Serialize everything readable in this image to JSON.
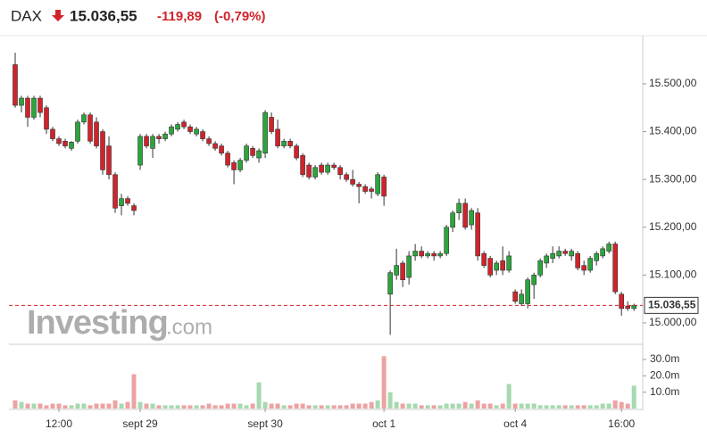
{
  "chart_data": {
    "type": "candlestick",
    "title": "DAX",
    "price": "15.036,55",
    "change": "-119,89",
    "change_pct": "(-0,79%)",
    "watermark": "Investing",
    "watermark_suffix": ".com",
    "up_color": "#2ca53c",
    "down_color": "#d0232b",
    "volume_up_color": "#a6d9b0",
    "volume_down_color": "#eca3a3",
    "last_price": {
      "value": 15036.55,
      "label": "15.036,55"
    },
    "ylim": [
      14957,
      15582
    ],
    "yticks": [
      {
        "value": 15000,
        "label": "15.000,00"
      },
      {
        "value": 15100,
        "label": "15.100,00"
      },
      {
        "value": 15200,
        "label": "15.200,00"
      },
      {
        "value": 15300,
        "label": "15.300,00"
      },
      {
        "value": 15400,
        "label": "15.400,00"
      },
      {
        "value": 15500,
        "label": "15.500,00"
      }
    ],
    "volume_ylim": [
      0,
      36
    ],
    "volume_yticks": [
      {
        "value": 10,
        "label": "10.0m"
      },
      {
        "value": 20,
        "label": "20.0m"
      },
      {
        "value": 30,
        "label": "30.0m"
      }
    ],
    "xlim": [
      -1,
      100.4
    ],
    "xticks": [
      {
        "value": 7,
        "label": "12:00"
      },
      {
        "value": 20,
        "label": "sept 29"
      },
      {
        "value": 40,
        "label": "sept 30"
      },
      {
        "value": 59,
        "label": "oct 1"
      },
      {
        "value": 80,
        "label": "oct 4"
      },
      {
        "value": 97,
        "label": "16:00"
      }
    ],
    "ohlc": [
      [
        15540,
        15565,
        15450,
        15455
      ],
      [
        15455,
        15475,
        15440,
        15470
      ],
      [
        15470,
        15475,
        15410,
        15430
      ],
      [
        15430,
        15475,
        15425,
        15470
      ],
      [
        15470,
        15475,
        15430,
        15440
      ],
      [
        15450,
        15455,
        15395,
        15405
      ],
      [
        15405,
        15410,
        15380,
        15385
      ],
      [
        15385,
        15390,
        15370,
        15375
      ],
      [
        15380,
        15385,
        15365,
        15370
      ],
      [
        15365,
        15380,
        15360,
        15378
      ],
      [
        15380,
        15425,
        15375,
        15420
      ],
      [
        15420,
        15440,
        15415,
        15435
      ],
      [
        15435,
        15440,
        15375,
        15380
      ],
      [
        15420,
        15430,
        15365,
        15370
      ],
      [
        15400,
        15405,
        15310,
        15320
      ],
      [
        15370,
        15390,
        15300,
        15310
      ],
      [
        15310,
        15315,
        15230,
        15240
      ],
      [
        15245,
        15270,
        15225,
        15260
      ],
      [
        15260,
        15265,
        15245,
        15250
      ],
      [
        15245,
        15250,
        15225,
        15235
      ],
      [
        15330,
        15395,
        15320,
        15390
      ],
      [
        15390,
        15395,
        15365,
        15370
      ],
      [
        15365,
        15395,
        15345,
        15390
      ],
      [
        15390,
        15395,
        15375,
        15385
      ],
      [
        15385,
        15400,
        15380,
        15395
      ],
      [
        15395,
        15415,
        15390,
        15410
      ],
      [
        15405,
        15420,
        15400,
        15415
      ],
      [
        15420,
        15425,
        15405,
        15410
      ],
      [
        15410,
        15415,
        15395,
        15400
      ],
      [
        15395,
        15410,
        15390,
        15405
      ],
      [
        15400,
        15405,
        15380,
        15385
      ],
      [
        15385,
        15390,
        15370,
        15375
      ],
      [
        15375,
        15380,
        15360,
        15365
      ],
      [
        15370,
        15375,
        15350,
        15355
      ],
      [
        15355,
        15360,
        15325,
        15330
      ],
      [
        15335,
        15340,
        15290,
        15320
      ],
      [
        15320,
        15345,
        15315,
        15340
      ],
      [
        15340,
        15375,
        15335,
        15370
      ],
      [
        15365,
        15370,
        15345,
        15350
      ],
      [
        15345,
        15365,
        15335,
        15360
      ],
      [
        15355,
        15445,
        15345,
        15440
      ],
      [
        15430,
        15440,
        15395,
        15400
      ],
      [
        15405,
        15425,
        15365,
        15370
      ],
      [
        15370,
        15385,
        15365,
        15380
      ],
      [
        15380,
        15385,
        15365,
        15370
      ],
      [
        15370,
        15375,
        15340,
        15345
      ],
      [
        15350,
        15355,
        15305,
        15310
      ],
      [
        15330,
        15335,
        15300,
        15305
      ],
      [
        15305,
        15330,
        15300,
        15325
      ],
      [
        15330,
        15335,
        15310,
        15315
      ],
      [
        15315,
        15335,
        15310,
        15330
      ],
      [
        15330,
        15335,
        15320,
        15325
      ],
      [
        15325,
        15330,
        15300,
        15310
      ],
      [
        15310,
        15315,
        15295,
        15300
      ],
      [
        15300,
        15320,
        15285,
        15290
      ],
      [
        15290,
        15295,
        15250,
        15285
      ],
      [
        15285,
        15290,
        15270,
        15275
      ],
      [
        15280,
        15285,
        15260,
        15275
      ],
      [
        15270,
        15315,
        15265,
        15310
      ],
      [
        15305,
        15310,
        15245,
        15265
      ],
      [
        15060,
        15110,
        14975,
        15105
      ],
      [
        15100,
        15155,
        15090,
        15120
      ],
      [
        15125,
        15130,
        15075,
        15090
      ],
      [
        15095,
        15150,
        15080,
        15140
      ],
      [
        15140,
        15165,
        15130,
        15150
      ],
      [
        15150,
        15160,
        15135,
        15140
      ],
      [
        15140,
        15150,
        15135,
        15145
      ],
      [
        15145,
        15150,
        15130,
        15140
      ],
      [
        15140,
        15150,
        15135,
        15145
      ],
      [
        15145,
        15205,
        15140,
        15200
      ],
      [
        15200,
        15235,
        15190,
        15230
      ],
      [
        15230,
        15260,
        15215,
        15250
      ],
      [
        15250,
        15260,
        15195,
        15200
      ],
      [
        15205,
        15240,
        15195,
        15235
      ],
      [
        15230,
        15240,
        15130,
        15140
      ],
      [
        15145,
        15150,
        15115,
        15120
      ],
      [
        15135,
        15140,
        15095,
        15100
      ],
      [
        15110,
        15130,
        15100,
        15125
      ],
      [
        15130,
        15160,
        15100,
        15110
      ],
      [
        15110,
        15150,
        15105,
        15140
      ],
      [
        15065,
        15070,
        15040,
        15045
      ],
      [
        15040,
        15070,
        15035,
        15060
      ],
      [
        15040,
        15095,
        15030,
        15090
      ],
      [
        15080,
        15105,
        15050,
        15100
      ],
      [
        15100,
        15135,
        15095,
        15130
      ],
      [
        15125,
        15145,
        15115,
        15140
      ],
      [
        15135,
        15160,
        15125,
        15145
      ],
      [
        15140,
        15160,
        15135,
        15150
      ],
      [
        15150,
        15155,
        15140,
        15145
      ],
      [
        15140,
        15155,
        15130,
        15150
      ],
      [
        15145,
        15150,
        15110,
        15115
      ],
      [
        15120,
        15130,
        15100,
        15110
      ],
      [
        15110,
        15140,
        15105,
        15135
      ],
      [
        15130,
        15150,
        15120,
        15145
      ],
      [
        15140,
        15160,
        15135,
        15155
      ],
      [
        15150,
        15170,
        15145,
        15165
      ],
      [
        15165,
        15170,
        15060,
        15065
      ],
      [
        15060,
        15065,
        15015,
        15030
      ],
      [
        15035,
        15045,
        15025,
        15030
      ],
      [
        15030,
        15040,
        15025,
        15036.55
      ]
    ],
    "volume": [
      5,
      4,
      3,
      3,
      3,
      2,
      3,
      3,
      2,
      2,
      3,
      3,
      2,
      3,
      3,
      3,
      5,
      3,
      4,
      21,
      4,
      3,
      3,
      2,
      2,
      2,
      2,
      2,
      2,
      2,
      2,
      3,
      2,
      2,
      3,
      3,
      3,
      2,
      3,
      16,
      4,
      3,
      3,
      2,
      2,
      3,
      3,
      2,
      2,
      2,
      2,
      2,
      2,
      2,
      3,
      3,
      3,
      4,
      5,
      32,
      10,
      4,
      3,
      3,
      3,
      2,
      2,
      2,
      2,
      3,
      3,
      3,
      4,
      3,
      5,
      3,
      3,
      2,
      3,
      15,
      3,
      3,
      3,
      3,
      2,
      2,
      2,
      2,
      2,
      2,
      2,
      2,
      2,
      2,
      3,
      3,
      5,
      4,
      3,
      14
    ]
  }
}
